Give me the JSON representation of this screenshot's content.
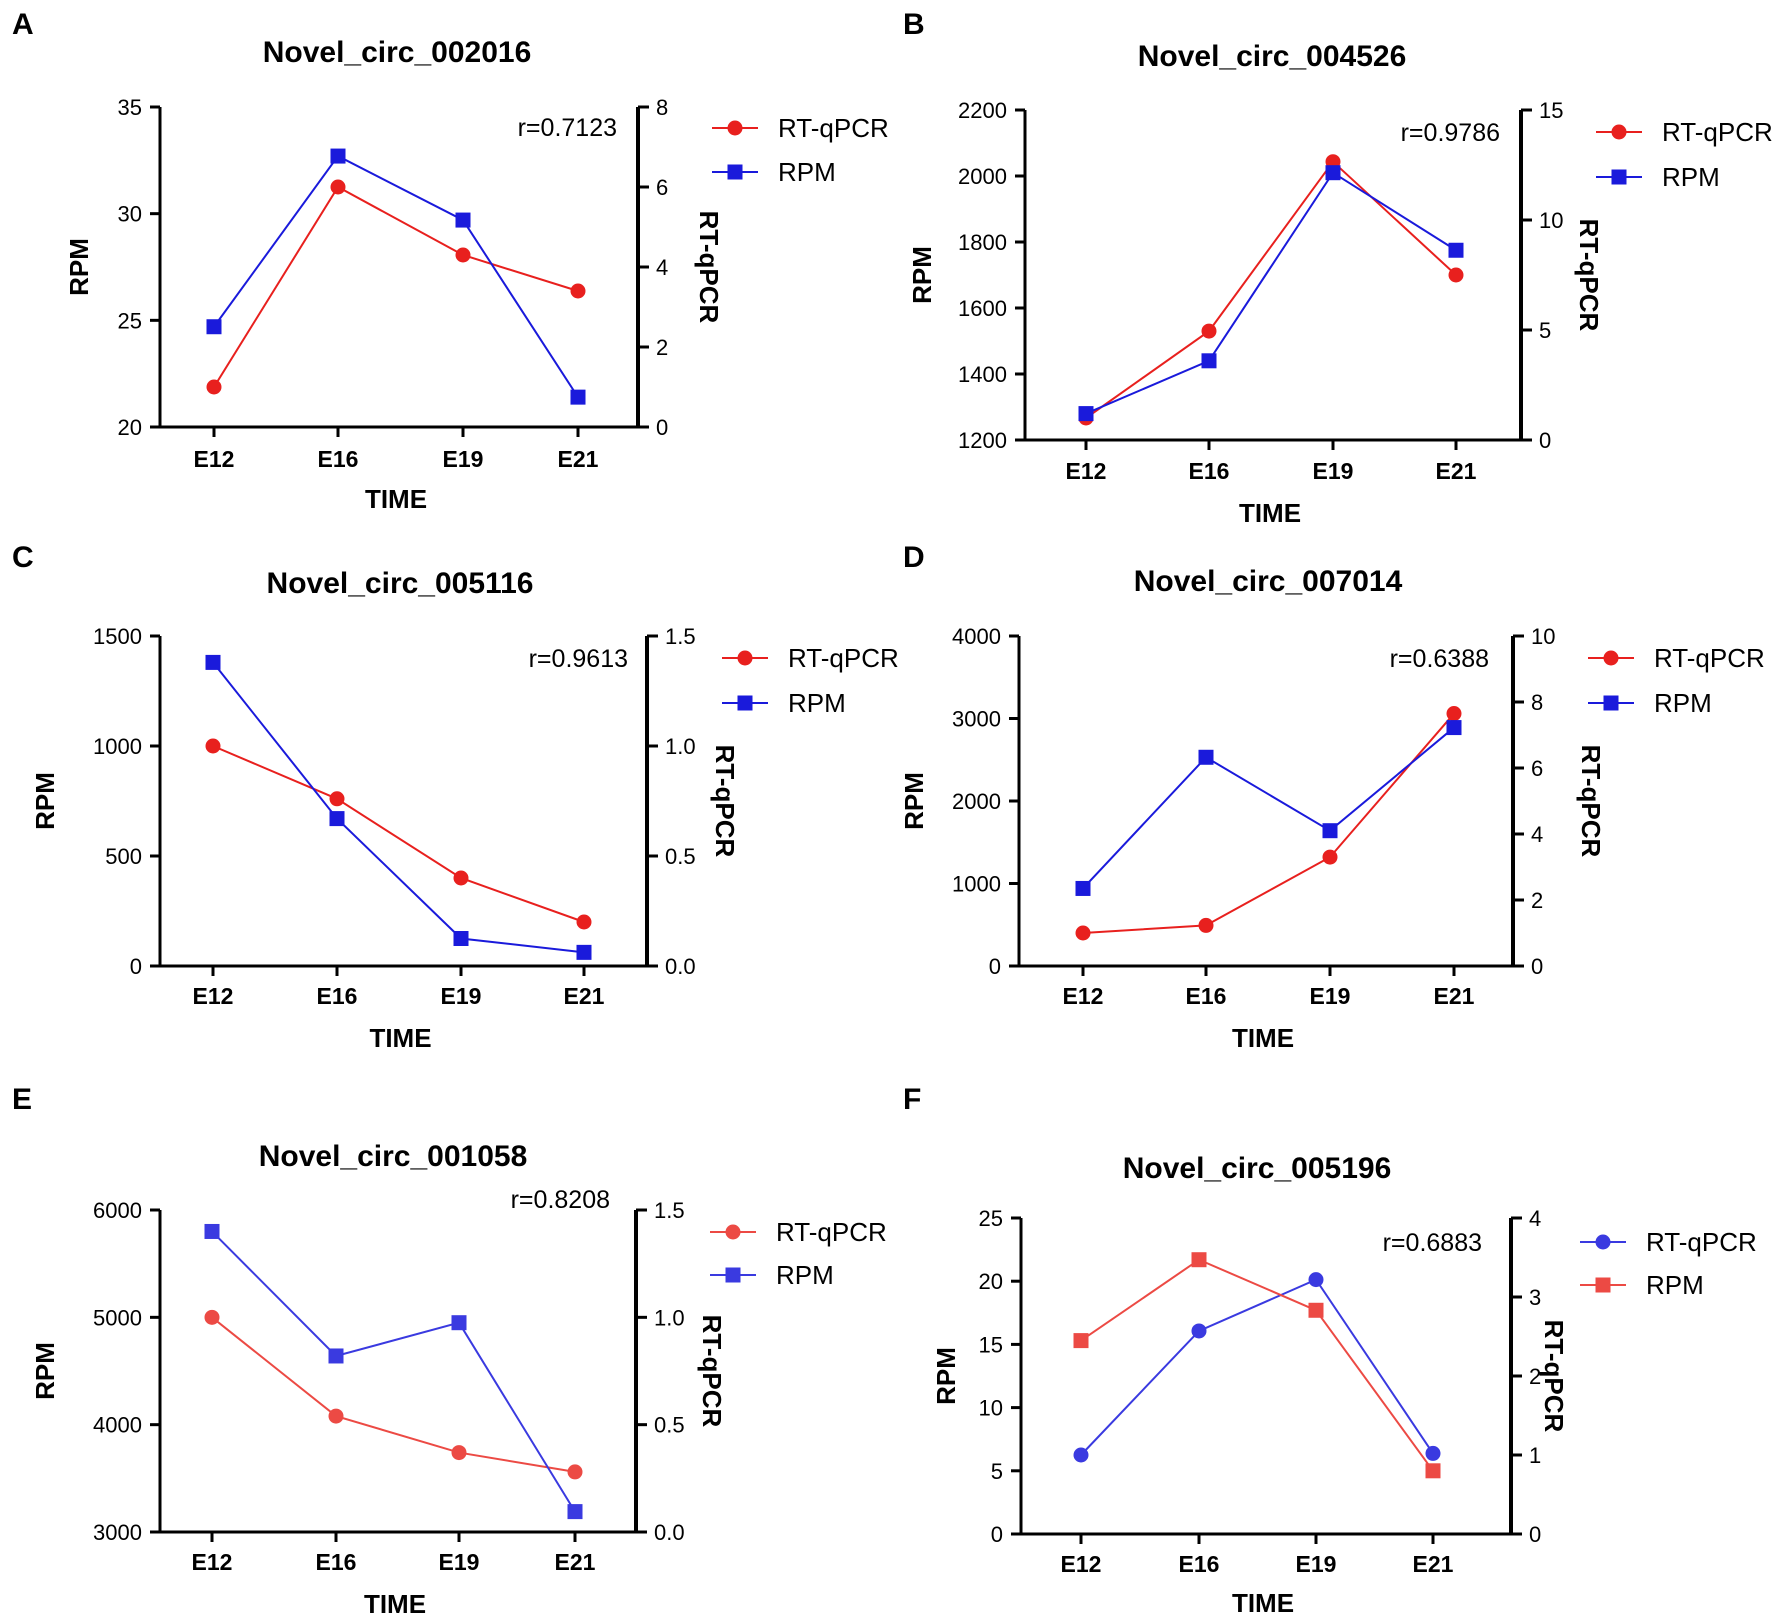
{
  "figure": {
    "panels": [
      "A",
      "B",
      "C",
      "D",
      "E",
      "F"
    ]
  },
  "chart_data": [
    {
      "panel": "A",
      "type": "line",
      "title": "Novel_circ_002016",
      "xlabel": "TIME",
      "ylabel": "RPM",
      "y2label": "RT-qPCR",
      "categories": [
        "E12",
        "E16",
        "E19",
        "E21"
      ],
      "ylim": [
        20,
        35
      ],
      "yticks": [
        "20",
        "25",
        "30",
        "35"
      ],
      "y2lim": [
        0,
        8
      ],
      "y2ticks": [
        "0",
        "2",
        "4",
        "6",
        "8"
      ],
      "correlation": "r=0.7123",
      "legend_position": "right",
      "series": [
        {
          "name": "RT-qPCR",
          "axis": "right",
          "marker": "circle",
          "color": "#e8201e",
          "values": [
            1.0,
            6.0,
            4.3,
            3.4
          ]
        },
        {
          "name": "RPM",
          "axis": "left",
          "marker": "square",
          "color": "#1a1adb",
          "values": [
            24.7,
            32.7,
            29.7,
            21.4
          ]
        }
      ]
    },
    {
      "panel": "B",
      "type": "line",
      "title": "Novel_circ_004526",
      "xlabel": "TIME",
      "ylabel": "RPM",
      "y2label": "RT-qPCR",
      "categories": [
        "E12",
        "E16",
        "E19",
        "E21"
      ],
      "ylim": [
        1200,
        2200
      ],
      "yticks": [
        "1200",
        "1400",
        "1600",
        "1800",
        "2000",
        "2200"
      ],
      "y2lim": [
        0,
        15
      ],
      "y2ticks": [
        "0",
        "5",
        "10",
        "15"
      ],
      "correlation": "r=0.9786",
      "legend_position": "right",
      "series": [
        {
          "name": "RT-qPCR",
          "axis": "right",
          "marker": "circle",
          "color": "#e8201e",
          "values": [
            1.0,
            4.95,
            12.65,
            7.5
          ]
        },
        {
          "name": "RPM",
          "axis": "left",
          "marker": "square",
          "color": "#1a1adb",
          "values": [
            1280,
            1440,
            2010,
            1775
          ]
        }
      ]
    },
    {
      "panel": "C",
      "type": "line",
      "title": "Novel_circ_005116",
      "xlabel": "TIME",
      "ylabel": "RPM",
      "y2label": "RT-qPCR",
      "categories": [
        "E12",
        "E16",
        "E19",
        "E21"
      ],
      "ylim": [
        0,
        1500
      ],
      "yticks": [
        "0",
        "500",
        "1000",
        "1500"
      ],
      "y2lim": [
        0,
        1.5
      ],
      "y2ticks": [
        "0.0",
        "0.5",
        "1.0",
        "1.5"
      ],
      "correlation": "r=0.9613",
      "legend_position": "right",
      "series": [
        {
          "name": "RT-qPCR",
          "axis": "right",
          "marker": "circle",
          "color": "#e8201e",
          "values": [
            1.0,
            0.76,
            0.4,
            0.2
          ]
        },
        {
          "name": "RPM",
          "axis": "left",
          "marker": "square",
          "color": "#1a1adb",
          "values": [
            1380,
            670,
            125,
            62
          ]
        }
      ]
    },
    {
      "panel": "D",
      "type": "line",
      "title": "Novel_circ_007014",
      "xlabel": "TIME",
      "ylabel": "RPM",
      "y2label": "RT-qPCR",
      "categories": [
        "E12",
        "E16",
        "E19",
        "E21"
      ],
      "ylim": [
        0,
        4000
      ],
      "yticks": [
        "0",
        "1000",
        "2000",
        "3000",
        "4000"
      ],
      "y2lim": [
        0,
        10
      ],
      "y2ticks": [
        "0",
        "2",
        "4",
        "6",
        "8",
        "10"
      ],
      "correlation": "r=0.6388",
      "legend_position": "right",
      "series": [
        {
          "name": "RT-qPCR",
          "axis": "right",
          "marker": "circle",
          "color": "#e8201e",
          "values": [
            1.0,
            1.23,
            3.3,
            7.65
          ]
        },
        {
          "name": "RPM",
          "axis": "left",
          "marker": "square",
          "color": "#1a1adb",
          "values": [
            940,
            2530,
            1640,
            2890
          ]
        }
      ]
    },
    {
      "panel": "E",
      "type": "line",
      "title": "Novel_circ_001058",
      "xlabel": "TIME",
      "ylabel": "RPM",
      "y2label": "RT-qPCR",
      "categories": [
        "E12",
        "E16",
        "E19",
        "E21"
      ],
      "ylim": [
        3000,
        6000
      ],
      "yticks": [
        "3000",
        "4000",
        "5000",
        "6000"
      ],
      "y2lim": [
        0,
        1.5
      ],
      "y2ticks": [
        "0.0",
        "0.5",
        "1.0",
        "1.5"
      ],
      "correlation": "r=0.8208",
      "legend_position": "right",
      "series": [
        {
          "name": "RT-qPCR",
          "axis": "right",
          "marker": "circle",
          "color": "#ec4a44",
          "values": [
            1.0,
            0.54,
            0.37,
            0.28
          ]
        },
        {
          "name": "RPM",
          "axis": "left",
          "marker": "square",
          "color": "#3a3ae0",
          "values": [
            5800,
            4640,
            4950,
            3190
          ]
        }
      ]
    },
    {
      "panel": "F",
      "type": "line",
      "title": "Novel_circ_005196",
      "xlabel": "TIME",
      "ylabel": "RPM",
      "y2label": "RT-qPCR",
      "categories": [
        "E12",
        "E16",
        "E19",
        "E21"
      ],
      "ylim": [
        0,
        25
      ],
      "yticks": [
        "0",
        "5",
        "10",
        "15",
        "20",
        "25"
      ],
      "y2lim": [
        0,
        4
      ],
      "y2ticks": [
        "0",
        "1",
        "2",
        "3",
        "4"
      ],
      "correlation": "r=0.6883",
      "legend_position": "right",
      "series": [
        {
          "name": "RT-qPCR",
          "axis": "right",
          "marker": "circle",
          "color": "#3a3ae0",
          "values": [
            1.0,
            2.57,
            3.22,
            1.02
          ]
        },
        {
          "name": "RPM",
          "axis": "left",
          "marker": "square",
          "color": "#ec4a44",
          "values": [
            15.3,
            21.7,
            17.7,
            5.0
          ]
        }
      ]
    }
  ]
}
